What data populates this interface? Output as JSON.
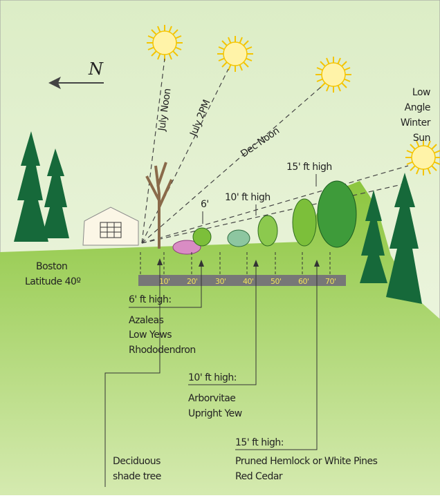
{
  "compass": "N",
  "sun_rays": [
    "July Noon",
    "July 2PM",
    "Dec Noon"
  ],
  "winter_sun": [
    "Low",
    "Angle",
    "Winter",
    "Sun"
  ],
  "heights": {
    "tall": "15' ft high",
    "medium": "10' ft high",
    "short": "6'"
  },
  "location": [
    "Boston",
    "Latitude 40º"
  ],
  "scale": [
    "10'",
    "20'",
    "30'",
    "40'",
    "50'",
    "60'",
    "70'"
  ],
  "groups": [
    {
      "heading": "6' ft high:",
      "plants": [
        "Azaleas",
        "Low Yews",
        "Rhododendron"
      ]
    },
    {
      "heading": "10' ft high:",
      "plants": [
        "Arborvitae",
        "Upright Yew"
      ]
    },
    {
      "heading": "15' ft high:",
      "plants": [
        "Pruned Hemlock or White Pines",
        "Red Cedar"
      ]
    }
  ],
  "shade_tree": [
    "Deciduous",
    "shade tree"
  ]
}
